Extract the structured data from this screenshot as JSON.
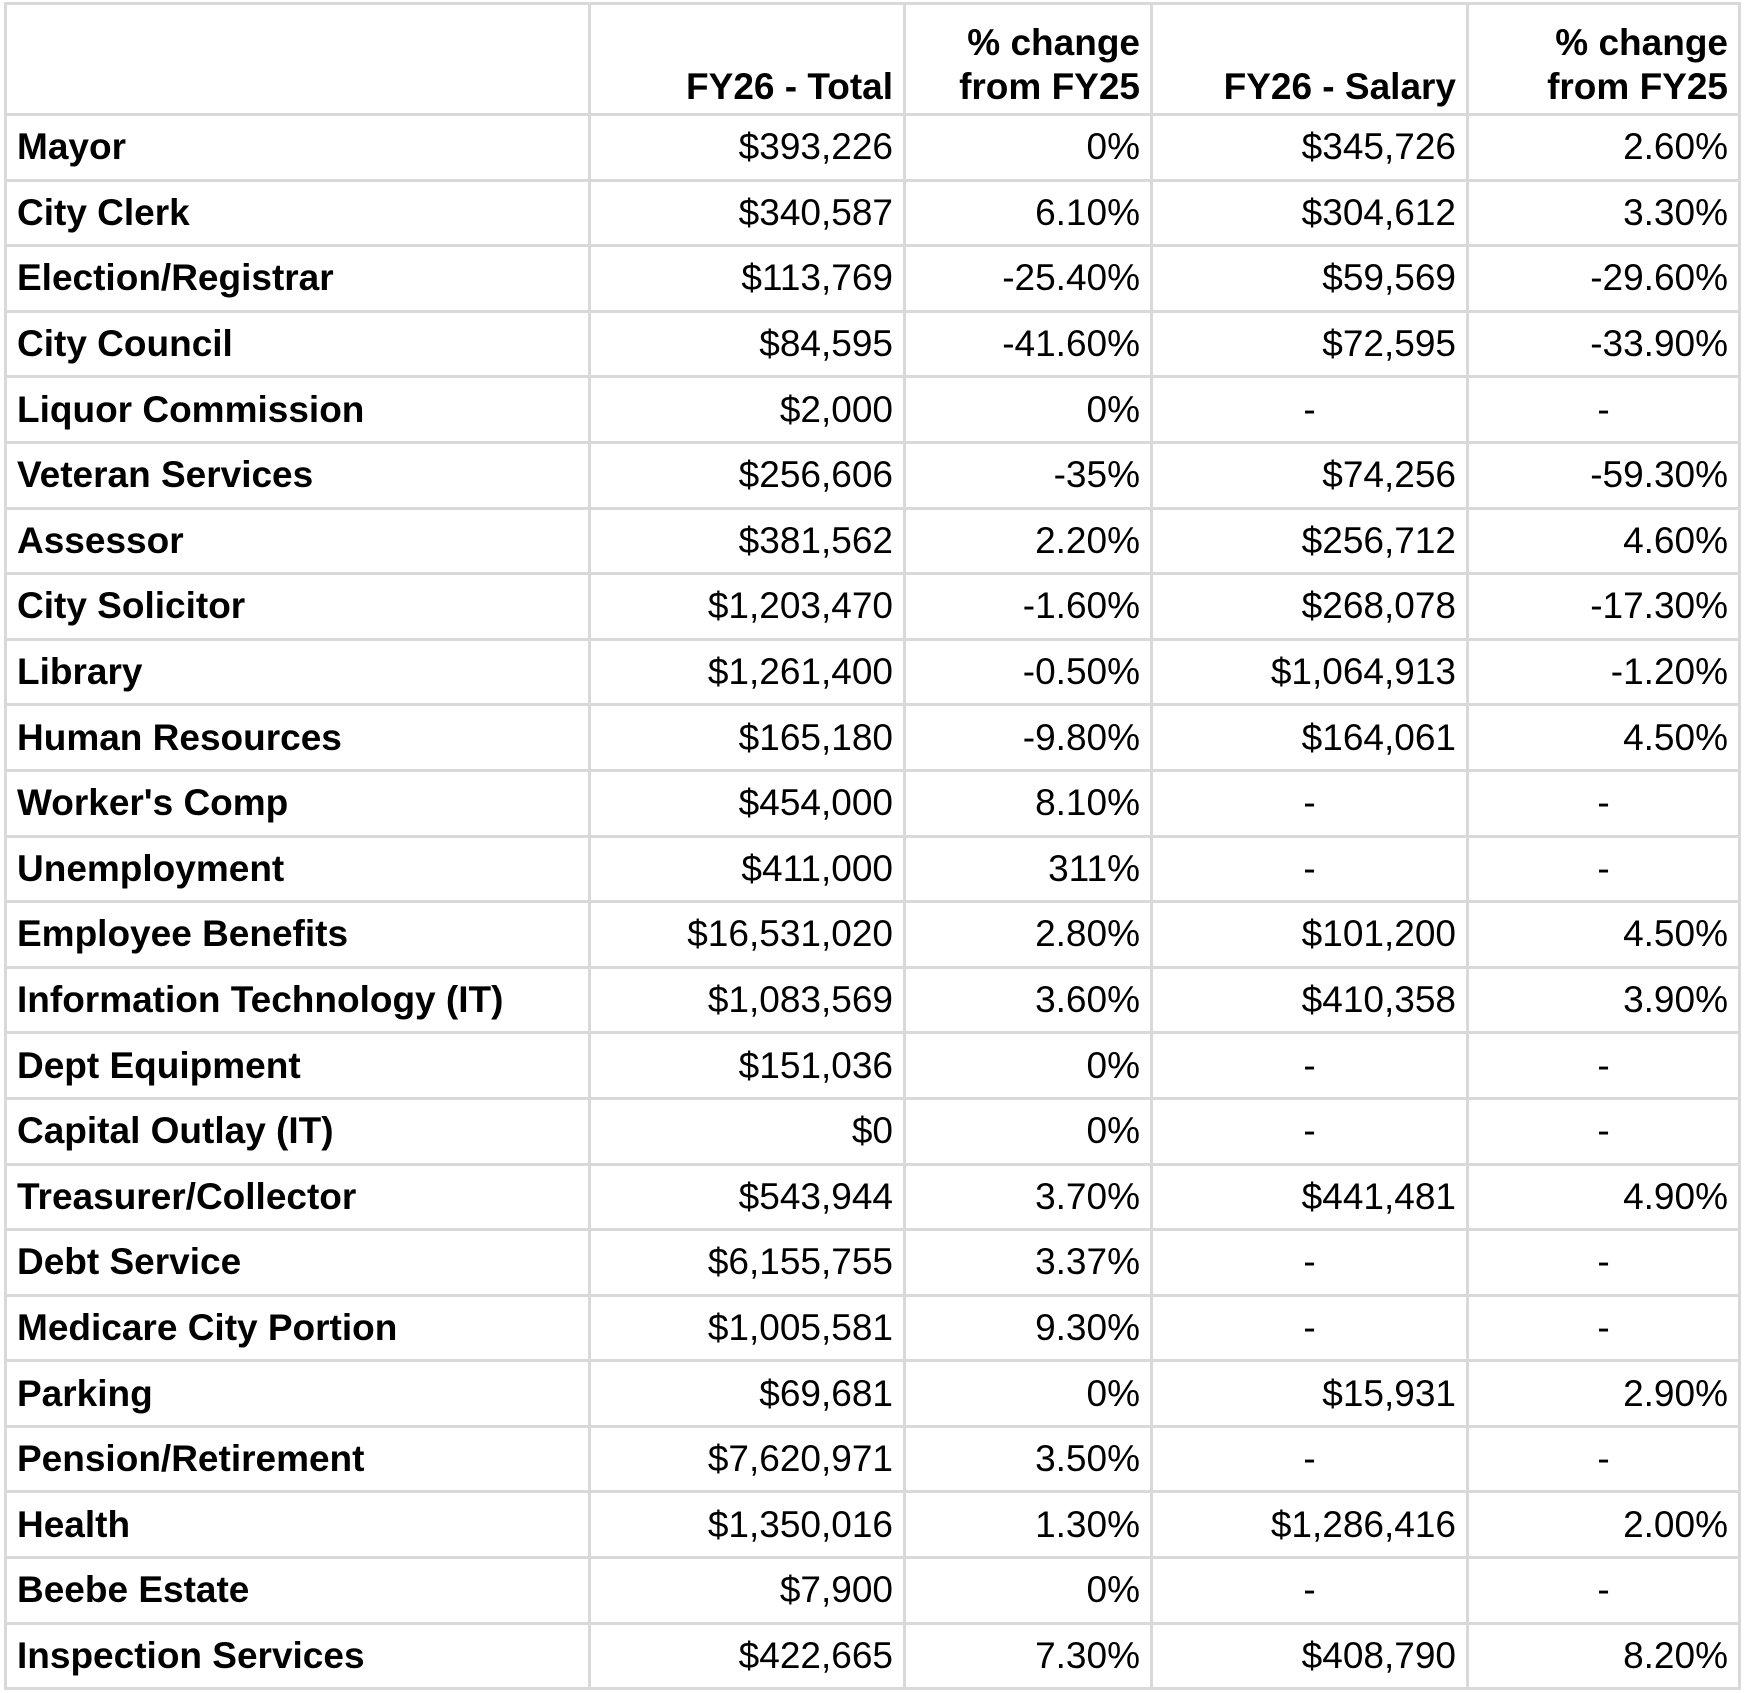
{
  "table": {
    "header": [
      "",
      "FY26 - Total",
      "% change from FY25",
      "FY26 - Salary",
      "% change from FY25"
    ],
    "rows": [
      [
        "Mayor",
        "$393,226",
        "0%",
        "$345,726",
        "2.60%"
      ],
      [
        "City Clerk",
        "$340,587",
        "6.10%",
        "$304,612",
        "3.30%"
      ],
      [
        "Election/Registrar",
        "$113,769",
        "-25.40%",
        "$59,569",
        "-29.60%"
      ],
      [
        "City Council",
        "$84,595",
        "-41.60%",
        "$72,595",
        "-33.90%"
      ],
      [
        "Liquor Commission",
        "$2,000",
        "0%",
        "-",
        "-"
      ],
      [
        "Veteran Services",
        "$256,606",
        "-35%",
        "$74,256",
        "-59.30%"
      ],
      [
        "Assessor",
        "$381,562",
        "2.20%",
        "$256,712",
        "4.60%"
      ],
      [
        "City Solicitor",
        "$1,203,470",
        "-1.60%",
        "$268,078",
        "-17.30%"
      ],
      [
        "Library",
        "$1,261,400",
        "-0.50%",
        "$1,064,913",
        "-1.20%"
      ],
      [
        "Human Resources",
        "$165,180",
        "-9.80%",
        "$164,061",
        "4.50%"
      ],
      [
        "Worker's Comp",
        "$454,000",
        "8.10%",
        "-",
        "-"
      ],
      [
        "Unemployment",
        "$411,000",
        "311%",
        "-",
        "-"
      ],
      [
        "Employee Benefits",
        "$16,531,020",
        "2.80%",
        "$101,200",
        "4.50%"
      ],
      [
        "Information Technology (IT)",
        "$1,083,569",
        "3.60%",
        "$410,358",
        "3.90%"
      ],
      [
        "Dept Equipment",
        "$151,036",
        "0%",
        "-",
        "-"
      ],
      [
        "Capital Outlay (IT)",
        "$0",
        "0%",
        "-",
        "-"
      ],
      [
        "Treasurer/Collector",
        "$543,944",
        "3.70%",
        "$441,481",
        "4.90%"
      ],
      [
        "Debt Service",
        "$6,155,755",
        "3.37%",
        "-",
        "-"
      ],
      [
        "Medicare City Portion",
        "$1,005,581",
        "9.30%",
        "-",
        "-"
      ],
      [
        "Parking",
        "$69,681",
        "0%",
        "$15,931",
        "2.90%"
      ],
      [
        "Pension/Retirement",
        "$7,620,971",
        "3.50%",
        "-",
        "-"
      ],
      [
        "Health",
        "$1,350,016",
        "1.30%",
        "$1,286,416",
        "2.00%"
      ],
      [
        "Beebe Estate",
        "$7,900",
        "0%",
        "-",
        "-"
      ],
      [
        "Inspection Services",
        "$422,665",
        "7.30%",
        "$408,790",
        "8.20%"
      ]
    ]
  }
}
